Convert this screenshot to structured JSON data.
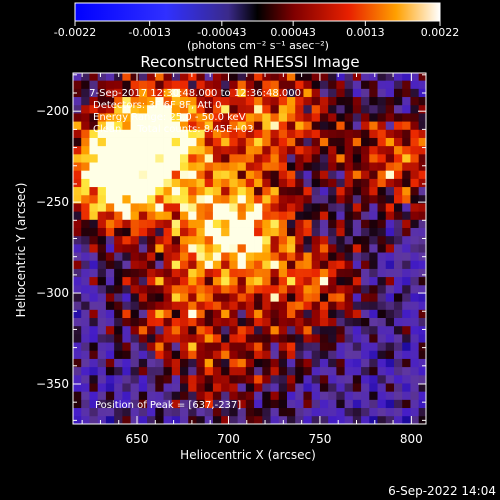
{
  "colorbar": {
    "tick_labels": [
      "-0.0022",
      "-0.0013",
      "-0.00043",
      "0.00043",
      "0.0013",
      "0.0022"
    ],
    "range": [
      -0.0022,
      0.0022
    ],
    "unit_label": "(photons cm⁻² s⁻¹ asec⁻²)"
  },
  "chart_data": {
    "type": "heatmap",
    "title": "Reconstructed RHESSI Image",
    "xlabel": "Heliocentric X (arcsec)",
    "ylabel": "Heliocentric Y (arcsec)",
    "xlim": [
      615,
      808
    ],
    "ylim": [
      -372,
      -179
    ],
    "x_ticks": [
      650,
      700,
      750,
      800
    ],
    "y_ticks": [
      -200,
      -250,
      -300,
      -350
    ],
    "x_tick_labels": [
      "650",
      "700",
      "750",
      "800"
    ],
    "y_tick_labels": [
      "−200",
      "−250",
      "−300",
      "−350"
    ],
    "annotations": [
      " 7-Sep-2017 12:30:48.000 to 12:36:48.000",
      "Detectors: 3F 6F 8F, Att 0",
      "Energy Range: 25.0 - 50.0 keV",
      "Clean     Total counts: 8.45E+03"
    ],
    "peak_label": "Position of Peak = [637,-237]",
    "peak": [
      637,
      -237
    ],
    "emission_regions": [
      {
        "x": 637,
        "y": -237,
        "intensity": 1.0
      },
      {
        "x": 700,
        "y": -265,
        "intensity": 0.9
      },
      {
        "x": 662,
        "y": -210,
        "intensity": 0.75
      },
      {
        "x": 725,
        "y": -205,
        "intensity": 0.6
      },
      {
        "x": 790,
        "y": -230,
        "intensity": 0.55
      },
      {
        "x": 742,
        "y": -300,
        "intensity": 0.5
      },
      {
        "x": 668,
        "y": -310,
        "intensity": 0.45
      },
      {
        "x": 700,
        "y": -345,
        "intensity": 0.35
      }
    ]
  },
  "footer": {
    "timestamp": "6-Sep-2022 14:04"
  }
}
